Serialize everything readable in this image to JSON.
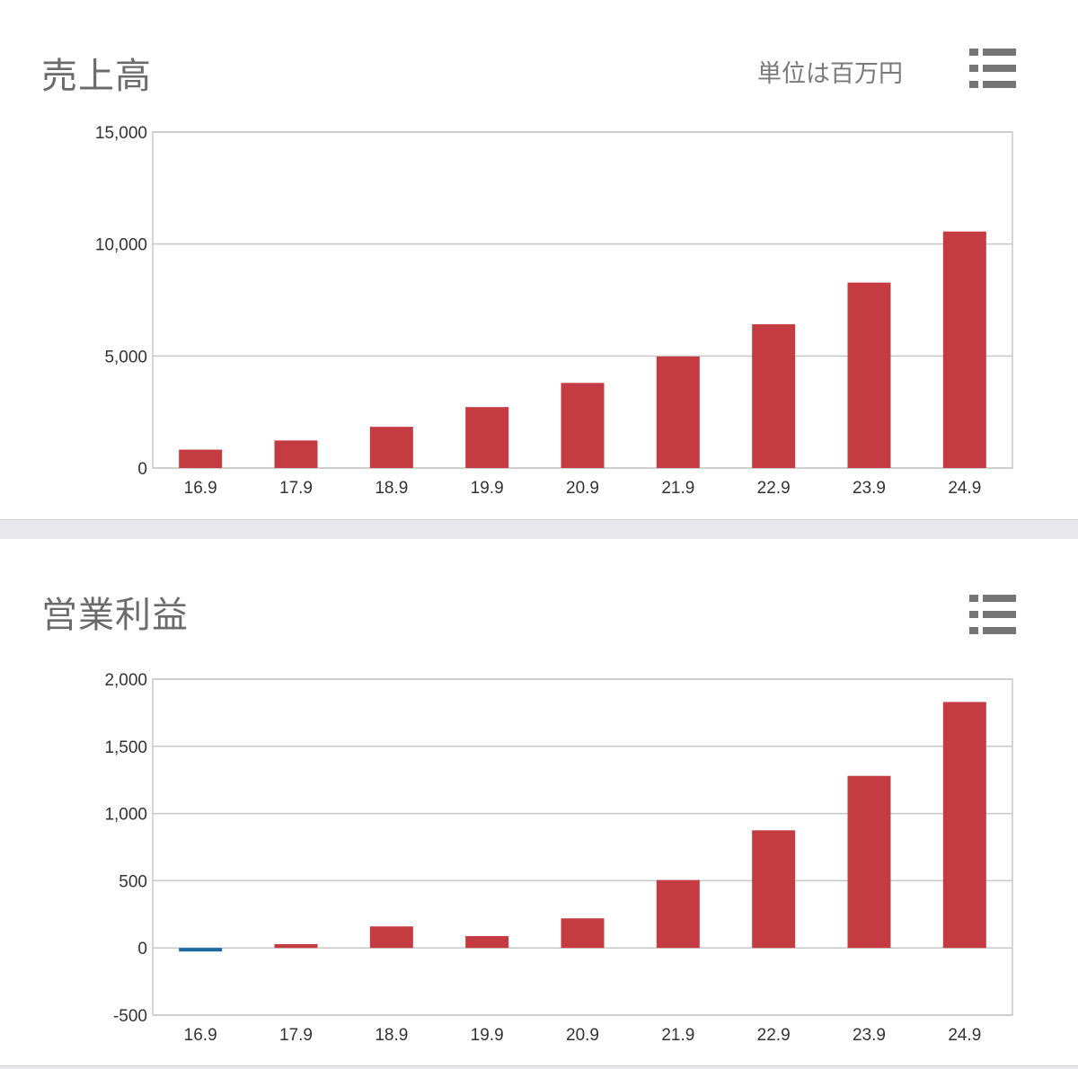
{
  "colors": {
    "bar_positive": "#c43c42",
    "bar_negative": "#1a6aa0",
    "grid": "#c8c8c8",
    "frame": "#c8c8c8"
  },
  "icons": {
    "menu": "list-menu-icon"
  },
  "panels": [
    {
      "title": "売上高",
      "unit": "単位は百万円"
    },
    {
      "title": "営業利益",
      "unit": ""
    }
  ],
  "chart_data": [
    {
      "type": "bar",
      "title": "売上高",
      "categories": [
        "16.9",
        "17.9",
        "18.9",
        "19.9",
        "20.9",
        "21.9",
        "22.9",
        "23.9",
        "24.9"
      ],
      "values": [
        820,
        1230,
        1840,
        2720,
        3800,
        4980,
        6420,
        8280,
        10560
      ],
      "ylim": [
        0,
        15000
      ],
      "yticks": [
        "0",
        "5,000",
        "10,000",
        "15,000"
      ],
      "ytick_values": [
        0,
        5000,
        10000,
        15000
      ],
      "grid": true,
      "legend": "none"
    },
    {
      "type": "bar",
      "title": "営業利益",
      "categories": [
        "16.9",
        "17.9",
        "18.9",
        "19.9",
        "20.9",
        "21.9",
        "22.9",
        "23.9",
        "24.9"
      ],
      "values": [
        -15,
        28,
        160,
        88,
        220,
        505,
        875,
        1280,
        1830
      ],
      "ylim": [
        -500,
        2000
      ],
      "yticks": [
        "-500",
        "0",
        "500",
        "1,000",
        "1,500",
        "2,000"
      ],
      "ytick_values": [
        -500,
        0,
        500,
        1000,
        1500,
        2000
      ],
      "grid": true,
      "legend": "none"
    }
  ]
}
